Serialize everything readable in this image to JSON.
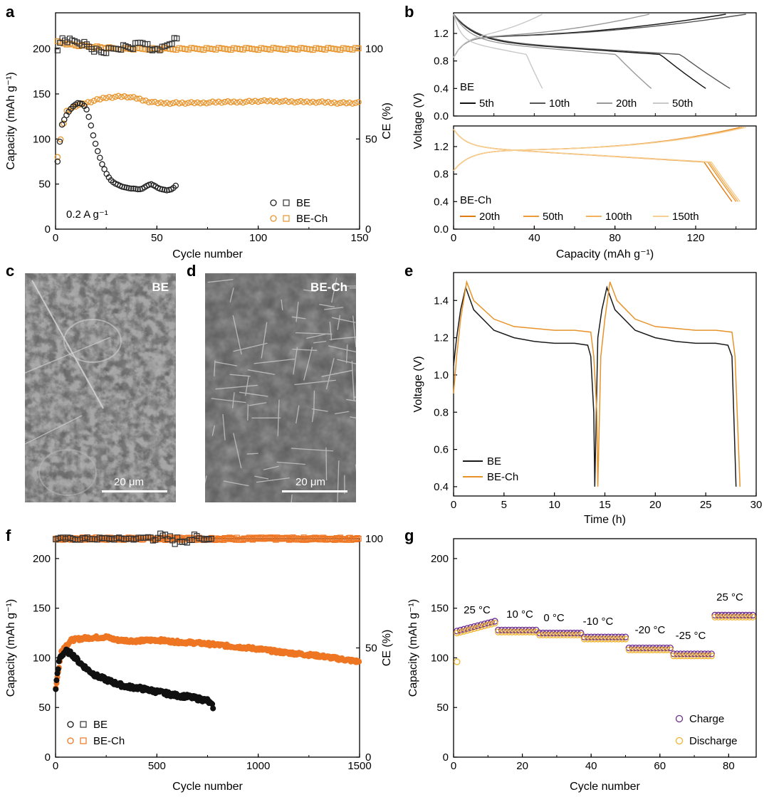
{
  "colors": {
    "be": "#1a1a1a",
    "bech": "#e8932a",
    "bech_dark": "#ee7623",
    "charge": "#6a2c8e",
    "discharge": "#f0b430"
  },
  "panels": {
    "a": "a",
    "b": "b",
    "c": "c",
    "d": "d",
    "e": "e",
    "f": "f",
    "g": "g"
  },
  "images": {
    "c": {
      "label": "BE",
      "scale": "20 μm"
    },
    "d": {
      "label": "BE-Ch",
      "scale": "20 μm"
    }
  },
  "chart_data": [
    {
      "id": "a",
      "type": "scatter",
      "xlabel": "Cycle number",
      "ylabel": "Capacity (mAh g⁻¹)",
      "y2label": "CE (%)",
      "xlim": [
        0,
        150
      ],
      "ylim": [
        0,
        240
      ],
      "y2lim": [
        0,
        120
      ],
      "xticks": [
        "0",
        "50",
        "100",
        "150"
      ],
      "yticks": [
        "0",
        "50",
        "100",
        "150",
        "200"
      ],
      "y2ticks": [
        "0",
        "50",
        "100"
      ],
      "annotation": "0.2 A g⁻¹",
      "legend": [
        "BE",
        "BE-Ch"
      ],
      "series": [
        {
          "name": "BE capacity",
          "x": [
            1,
            3,
            5,
            7,
            9,
            11,
            13,
            15,
            17,
            19,
            21,
            23,
            25,
            27,
            29,
            31,
            33,
            35,
            37,
            39,
            41,
            43,
            45,
            47,
            49,
            51,
            53,
            55,
            57,
            59,
            60
          ],
          "y": [
            75,
            115,
            125,
            132,
            137,
            140,
            139,
            135,
            120,
            100,
            85,
            72,
            62,
            55,
            51,
            49,
            47,
            46,
            45,
            45,
            44,
            45,
            48,
            50,
            48,
            45,
            44,
            43,
            44,
            47,
            51
          ]
        },
        {
          "name": "BE CE",
          "x": [
            1,
            3,
            5,
            8,
            11,
            14,
            17,
            20,
            23,
            26,
            29,
            32,
            35,
            38,
            41,
            44,
            47,
            50,
            53,
            56,
            59
          ],
          "y": [
            98,
            106,
            105,
            104,
            104,
            103,
            101,
            99,
            98,
            99,
            100,
            101,
            101,
            101,
            103,
            104,
            98,
            101,
            100,
            103,
            105
          ]
        },
        {
          "name": "BE-Ch capacity",
          "x": [
            1,
            5,
            10,
            15,
            20,
            25,
            30,
            35,
            40,
            45,
            50,
            60,
            70,
            80,
            90,
            100,
            110,
            120,
            130,
            140,
            150
          ],
          "y": [
            80,
            130,
            137,
            140,
            143,
            146,
            147,
            147,
            145,
            142,
            140,
            140,
            140,
            141,
            141,
            142,
            142,
            141,
            141,
            140,
            140
          ]
        },
        {
          "name": "BE-Ch CE",
          "x": [
            1,
            5,
            10,
            20,
            30,
            40,
            50,
            60,
            70,
            80,
            90,
            100,
            110,
            120,
            130,
            140,
            150
          ],
          "y": [
            104,
            103,
            102,
            101,
            100,
            100,
            100,
            100,
            100,
            100,
            100,
            100,
            100,
            100,
            100,
            100,
            100
          ]
        }
      ]
    },
    {
      "id": "b",
      "type": "line",
      "xlabel": "Capacity (mAh g⁻¹)",
      "ylabel": "Voltage (V)",
      "xlim": [
        0,
        150
      ],
      "ylim": [
        0,
        1.5
      ],
      "xticks": [
        "0",
        "40",
        "80",
        "120"
      ],
      "yticks": [
        "0.0",
        "0.4",
        "0.8",
        "1.2"
      ],
      "top": {
        "label": "BE",
        "legend": [
          "5th",
          "10th",
          "20th",
          "50th"
        ],
        "discharge_end": [
          125,
          137,
          98,
          44
        ],
        "charge_end": [
          135,
          145,
          97,
          44
        ]
      },
      "bottom": {
        "label": "BE-Ch",
        "legend": [
          "20th",
          "50th",
          "100th",
          "150th"
        ],
        "discharge_end": [
          138,
          140,
          141,
          142
        ],
        "charge_end": [
          142,
          143,
          144,
          145
        ]
      }
    },
    {
      "id": "e",
      "type": "line",
      "xlabel": "Time (h)",
      "ylabel": "Voltage (V)",
      "xlim": [
        0,
        30
      ],
      "ylim": [
        0.35,
        1.55
      ],
      "xticks": [
        "0",
        "5",
        "10",
        "15",
        "20",
        "25",
        "30"
      ],
      "yticks": [
        "0.4",
        "0.6",
        "0.8",
        "1.0",
        "1.2",
        "1.4"
      ],
      "legend": [
        "BE",
        "BE-Ch"
      ],
      "series": [
        {
          "name": "BE",
          "x": [
            0,
            0.3,
            0.7,
            1.2,
            2,
            4,
            6,
            8,
            10,
            12,
            13.3,
            13.6,
            13.9,
            14.0,
            14.3,
            14.7,
            15.2,
            16,
            18,
            20,
            22,
            24,
            26,
            27.2,
            27.6,
            28.0
          ],
          "y": [
            1.05,
            1.2,
            1.35,
            1.47,
            1.35,
            1.24,
            1.2,
            1.18,
            1.17,
            1.17,
            1.16,
            1.1,
            0.8,
            0.4,
            1.2,
            1.35,
            1.47,
            1.35,
            1.24,
            1.2,
            1.18,
            1.17,
            1.17,
            1.16,
            1.1,
            0.4
          ]
        },
        {
          "name": "BE-Ch",
          "x": [
            0,
            0.3,
            0.7,
            1.3,
            2,
            4,
            6,
            8,
            10,
            12,
            13.6,
            13.9,
            14.2,
            14.3,
            14.6,
            15.0,
            15.5,
            16.2,
            18,
            20,
            22,
            24,
            26,
            27.6,
            27.9,
            28.4
          ],
          "y": [
            0.9,
            1.1,
            1.3,
            1.5,
            1.4,
            1.3,
            1.26,
            1.25,
            1.24,
            1.24,
            1.23,
            1.1,
            0.8,
            0.4,
            1.1,
            1.3,
            1.5,
            1.4,
            1.3,
            1.26,
            1.25,
            1.24,
            1.24,
            1.23,
            1.1,
            0.4
          ]
        }
      ]
    },
    {
      "id": "f",
      "type": "scatter",
      "xlabel": "Cycle number",
      "ylabel": "Capacity (mAh g⁻¹)",
      "y2label": "CE (%)",
      "xlim": [
        0,
        1500
      ],
      "ylim": [
        0,
        220
      ],
      "y2lim": [
        0,
        100
      ],
      "xticks": [
        "0",
        "500",
        "1000",
        "1500"
      ],
      "yticks": [
        "0",
        "50",
        "100",
        "150",
        "200"
      ],
      "y2ticks": [
        "0",
        "50",
        "100"
      ],
      "legend": [
        "BE",
        "BE-Ch"
      ],
      "series": [
        {
          "name": "BE capacity",
          "x": [
            1,
            20,
            50,
            80,
            120,
            160,
            200,
            250,
            300,
            350,
            400,
            450,
            500,
            550,
            600,
            650,
            700,
            750,
            780
          ],
          "y": [
            70,
            100,
            107,
            104,
            95,
            88,
            82,
            78,
            74,
            71,
            70,
            68,
            66,
            64,
            62,
            61,
            59,
            57,
            50
          ]
        },
        {
          "name": "BE CE",
          "x": [
            1,
            100,
            200,
            300,
            400,
            500,
            550,
            600,
            650,
            700,
            780
          ],
          "y": [
            100,
            100,
            100,
            100,
            100,
            101,
            100,
            99,
            100,
            100,
            100
          ]
        },
        {
          "name": "BE-Ch capacity",
          "x": [
            1,
            30,
            80,
            150,
            250,
            300,
            400,
            500,
            600,
            700,
            800,
            900,
            1000,
            1100,
            1200,
            1300,
            1400,
            1500
          ],
          "y": [
            70,
            108,
            118,
            120,
            121,
            118,
            117,
            118,
            116,
            115,
            113,
            111,
            109,
            106,
            104,
            102,
            99,
            96
          ]
        },
        {
          "name": "BE-Ch CE",
          "x": [
            1,
            300,
            600,
            900,
            1200,
            1500
          ],
          "y": [
            100,
            100,
            100,
            100,
            100,
            100
          ]
        }
      ]
    },
    {
      "id": "g",
      "type": "scatter",
      "xlabel": "Cycle number",
      "ylabel": "Capacity (mAh g⁻¹)",
      "xlim": [
        0,
        88
      ],
      "ylim": [
        0,
        220
      ],
      "xticks": [
        "0",
        "20",
        "40",
        "60",
        "80"
      ],
      "yticks": [
        "0",
        "50",
        "100",
        "150",
        "200"
      ],
      "legend": [
        "Charge",
        "Discharge"
      ],
      "temperatures": [
        {
          "label": "25 °C",
          "start": 1,
          "end": 12,
          "value": 131
        },
        {
          "label": "10 °C",
          "start": 13,
          "end": 24,
          "value": 127
        },
        {
          "label": "0 °C",
          "start": 25,
          "end": 37,
          "value": 124
        },
        {
          "label": "-10 °C",
          "start": 38,
          "end": 50,
          "value": 120
        },
        {
          "label": "-20 °C",
          "start": 51,
          "end": 63,
          "value": 109
        },
        {
          "label": "-25 °C",
          "start": 64,
          "end": 75,
          "value": 103
        },
        {
          "label": "25 °C",
          "start": 76,
          "end": 87,
          "value": 142
        }
      ],
      "first_discharge": 96
    }
  ]
}
